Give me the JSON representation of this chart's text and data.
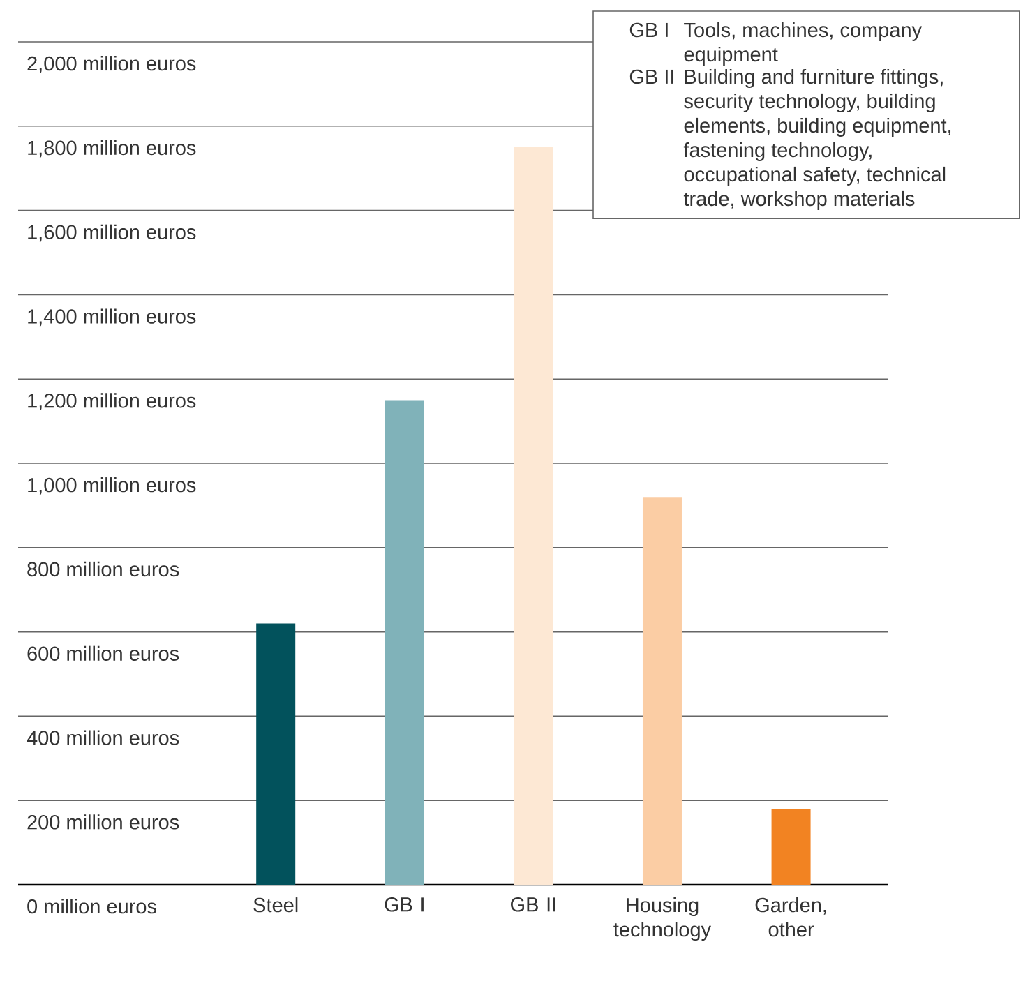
{
  "chart_data": {
    "type": "bar",
    "categories": [
      "Steel",
      "GB I",
      "GB II",
      "Housing technology",
      "Garden, other"
    ],
    "values": [
      620,
      1150,
      1750,
      920,
      180
    ],
    "colors": [
      "#02525c",
      "#80b2b9",
      "#fde8d4",
      "#fbcda4",
      "#f28322"
    ],
    "ylim": [
      0,
      2000
    ],
    "yticks": [
      {
        "value": 0,
        "label": "0 million euros"
      },
      {
        "value": 200,
        "label": "200 million euros"
      },
      {
        "value": 400,
        "label": "400 million euros"
      },
      {
        "value": 600,
        "label": "600 million euros"
      },
      {
        "value": 800,
        "label": "800 million euros"
      },
      {
        "value": 1000,
        "label": "1,000 million euros"
      },
      {
        "value": 1200,
        "label": "1,200 million euros"
      },
      {
        "value": 1400,
        "label": "1,400 million euros"
      },
      {
        "value": 1600,
        "label": "1,600 million euros"
      },
      {
        "value": 1800,
        "label": "1,800 million euros"
      },
      {
        "value": 2000,
        "label": "2,000 million euros"
      }
    ],
    "grid": "y",
    "annotations": [
      "GB I",
      "Tools, machines, company equipment",
      "GB II",
      "Building and furniture fittings, security technology, building elements, building equipment, fastening technology, occupational safety, technical trade, workshop materials"
    ]
  }
}
